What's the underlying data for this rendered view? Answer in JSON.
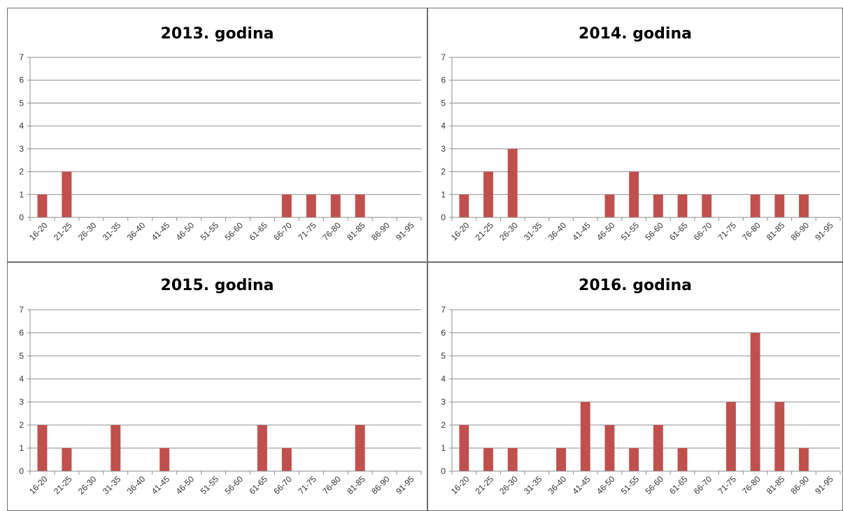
{
  "colors": {
    "bar": "#c0504d",
    "grid": "#8c8c8c",
    "frame": "#6f6f6f"
  },
  "chart_data": [
    {
      "type": "bar",
      "title": "2013. godina",
      "categories": [
        "16-20",
        "21-25",
        "26-30",
        "31-35",
        "36-40",
        "41-45",
        "46-50",
        "51-55",
        "56-60",
        "61-65",
        "66-70",
        "71-75",
        "76-80",
        "81-85",
        "86-90",
        "91-95"
      ],
      "values": [
        1,
        2,
        0,
        0,
        0,
        0,
        0,
        0,
        0,
        0,
        1,
        1,
        1,
        1,
        0,
        0
      ],
      "ylim": [
        0,
        7
      ],
      "yticks": [
        0,
        1,
        2,
        3,
        4,
        5,
        6,
        7
      ],
      "grid": true,
      "legend": "none"
    },
    {
      "type": "bar",
      "title": "2014. godina",
      "categories": [
        "16-20",
        "21-25",
        "26-30",
        "31-35",
        "36-40",
        "41-45",
        "46-50",
        "51-55",
        "56-60",
        "61-65",
        "66-70",
        "71-75",
        "76-80",
        "81-85",
        "86-90",
        "91-95"
      ],
      "values": [
        1,
        2,
        3,
        0,
        0,
        0,
        1,
        2,
        1,
        1,
        1,
        0,
        1,
        1,
        1,
        0
      ],
      "ylim": [
        0,
        7
      ],
      "yticks": [
        0,
        1,
        2,
        3,
        4,
        5,
        6,
        7
      ],
      "grid": true,
      "legend": "none"
    },
    {
      "type": "bar",
      "title": "2015. godina",
      "categories": [
        "16-20",
        "21-25",
        "26-30",
        "31-35",
        "36-40",
        "41-45",
        "46-50",
        "51-55",
        "56-60",
        "61-65",
        "66-70",
        "71-75",
        "76-80",
        "81-85",
        "86-90",
        "91-95"
      ],
      "values": [
        2,
        1,
        0,
        2,
        0,
        1,
        0,
        0,
        0,
        2,
        1,
        0,
        0,
        2,
        0,
        0
      ],
      "ylim": [
        0,
        7
      ],
      "yticks": [
        0,
        1,
        2,
        3,
        4,
        5,
        6,
        7
      ],
      "grid": true,
      "legend": "none"
    },
    {
      "type": "bar",
      "title": "2016. godina",
      "categories": [
        "16-20",
        "21-25",
        "26-30",
        "31-35",
        "36-40",
        "41-45",
        "46-50",
        "51-55",
        "56-60",
        "61-65",
        "66-70",
        "71-75",
        "76-80",
        "81-85",
        "86-90",
        "91-95"
      ],
      "values": [
        2,
        1,
        1,
        0,
        1,
        3,
        2,
        1,
        2,
        1,
        0,
        3,
        6,
        3,
        1,
        0
      ],
      "ylim": [
        0,
        7
      ],
      "yticks": [
        0,
        1,
        2,
        3,
        4,
        5,
        6,
        7
      ],
      "grid": true,
      "legend": "none"
    }
  ]
}
